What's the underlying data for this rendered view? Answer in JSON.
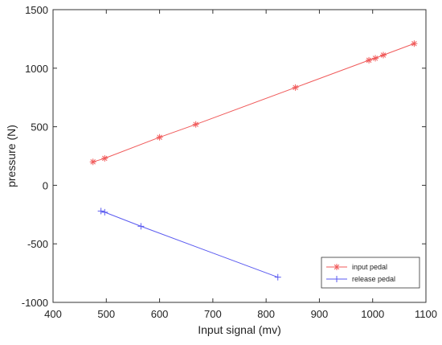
{
  "chart_data": {
    "type": "line",
    "xlabel": "Input signal (mv)",
    "ylabel": "pressure  (N)",
    "xlim": [
      400,
      1100
    ],
    "ylim": [
      -1000,
      1500
    ],
    "xticks": [
      400,
      500,
      600,
      700,
      800,
      900,
      1000,
      1100
    ],
    "yticks": [
      -1000,
      -500,
      0,
      500,
      1000,
      1500
    ],
    "grid": false,
    "legend_position": "bottom-right",
    "series": [
      {
        "name": "input pedal",
        "color": "#f05a5a",
        "marker": "asterisk",
        "x": [
          475,
          497,
          600,
          668,
          855,
          993,
          1005,
          1020,
          1078
        ],
        "y": [
          200,
          230,
          410,
          520,
          835,
          1068,
          1085,
          1112,
          1210
        ]
      },
      {
        "name": "release pedal",
        "color": "#5a5af0",
        "marker": "plus",
        "x": [
          490,
          497,
          565,
          822
        ],
        "y": [
          -220,
          -230,
          -350,
          -785
        ]
      }
    ]
  }
}
